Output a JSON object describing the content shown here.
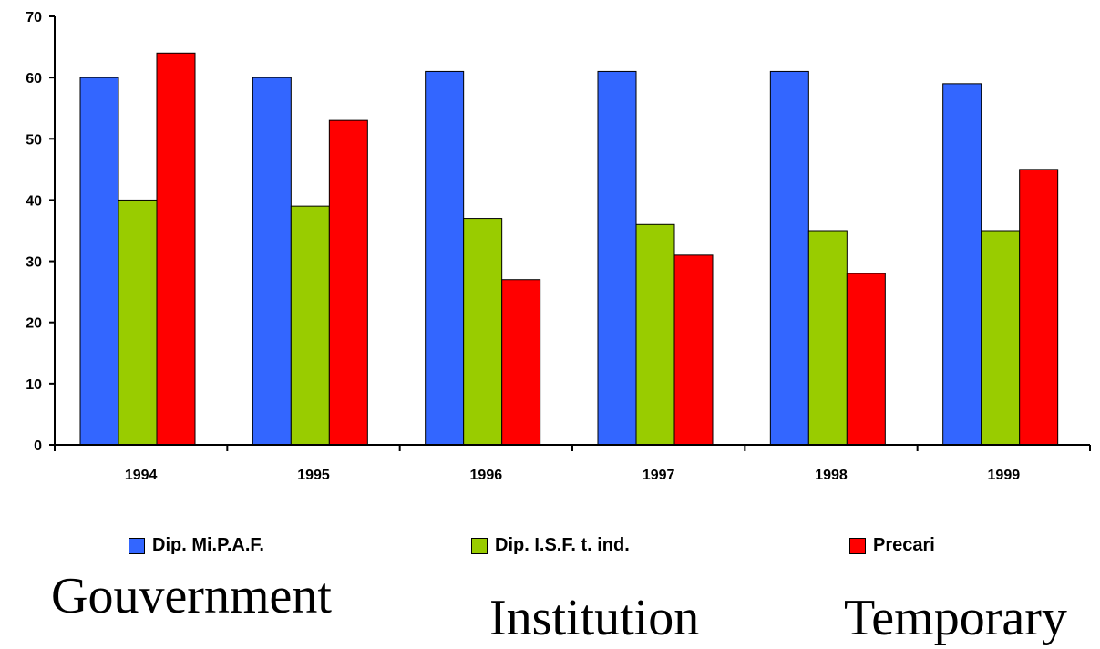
{
  "chart_data": {
    "type": "bar",
    "categories": [
      "1994",
      "1995",
      "1996",
      "1997",
      "1998",
      "1999"
    ],
    "series": [
      {
        "name": "Dip. Mi.P.A.F.",
        "color": "#3366FF",
        "values": [
          60,
          60,
          61,
          61,
          61,
          59
        ]
      },
      {
        "name": "Dip. I.S.F. t. ind.",
        "color": "#99CC00",
        "values": [
          40,
          39,
          37,
          36,
          35,
          35
        ]
      },
      {
        "name": "Precari",
        "color": "#FF0000",
        "values": [
          64,
          53,
          27,
          31,
          28,
          45
        ]
      }
    ],
    "ylim": [
      0,
      70
    ],
    "yticks": [
      0,
      10,
      20,
      30,
      40,
      50,
      60,
      70
    ],
    "grid": false,
    "legend_position": "bottom"
  },
  "captions": [
    "Gouvernment",
    "Institution",
    "Temporary"
  ]
}
